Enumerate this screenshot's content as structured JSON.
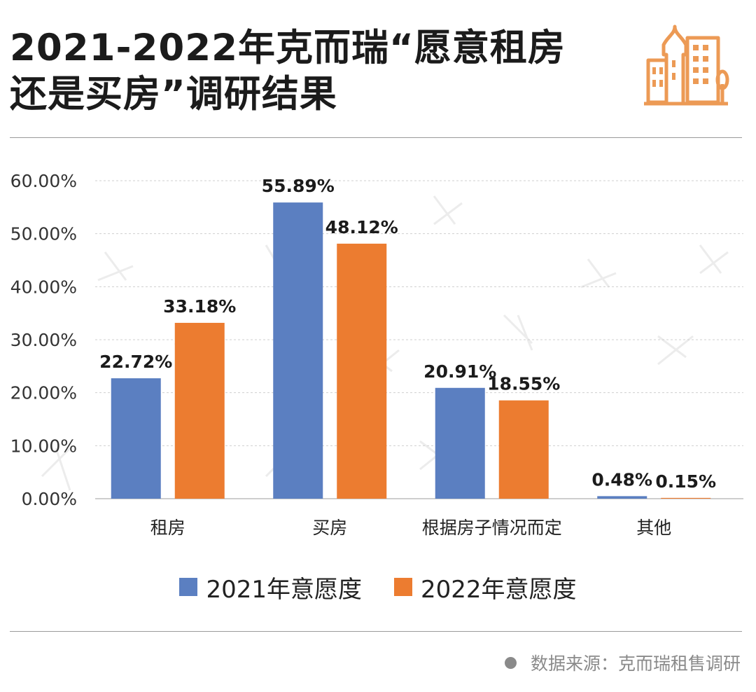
{
  "title": {
    "line1": "2021-2022年克而瑞“愿意租房",
    "line2": "还是买房”调研结果"
  },
  "header_icon": "city-buildings-icon",
  "colors": {
    "series_2021": "#5b7fc1",
    "series_2022": "#ec7c30",
    "icon_accent": "#ec9a55",
    "grid": "#cfcfcf"
  },
  "chart_data": {
    "type": "bar",
    "categories": [
      "租房",
      "买房",
      "根据房子情况而定",
      "其他"
    ],
    "series": [
      {
        "name": "2021年意愿度",
        "values": [
          22.72,
          55.89,
          20.91,
          0.48
        ],
        "labels": [
          "22.72%",
          "55.89%",
          "20.91%",
          "0.48%"
        ]
      },
      {
        "name": "2022年意愿度",
        "values": [
          33.18,
          48.12,
          18.55,
          0.15
        ],
        "labels": [
          "33.18%",
          "48.12%",
          "18.55%",
          "0.15%"
        ]
      }
    ],
    "ylim": [
      0,
      60
    ],
    "yticks": [
      "0.00%",
      "10.00%",
      "20.00%",
      "30.00%",
      "40.00%",
      "50.00%",
      "60.00%"
    ],
    "grid": true,
    "legend": "bottom"
  },
  "legend": {
    "series_2021": "2021年意愿度",
    "series_2022": "2022年意愿度"
  },
  "source": {
    "text": "数据来源：克而瑞租售调研"
  }
}
